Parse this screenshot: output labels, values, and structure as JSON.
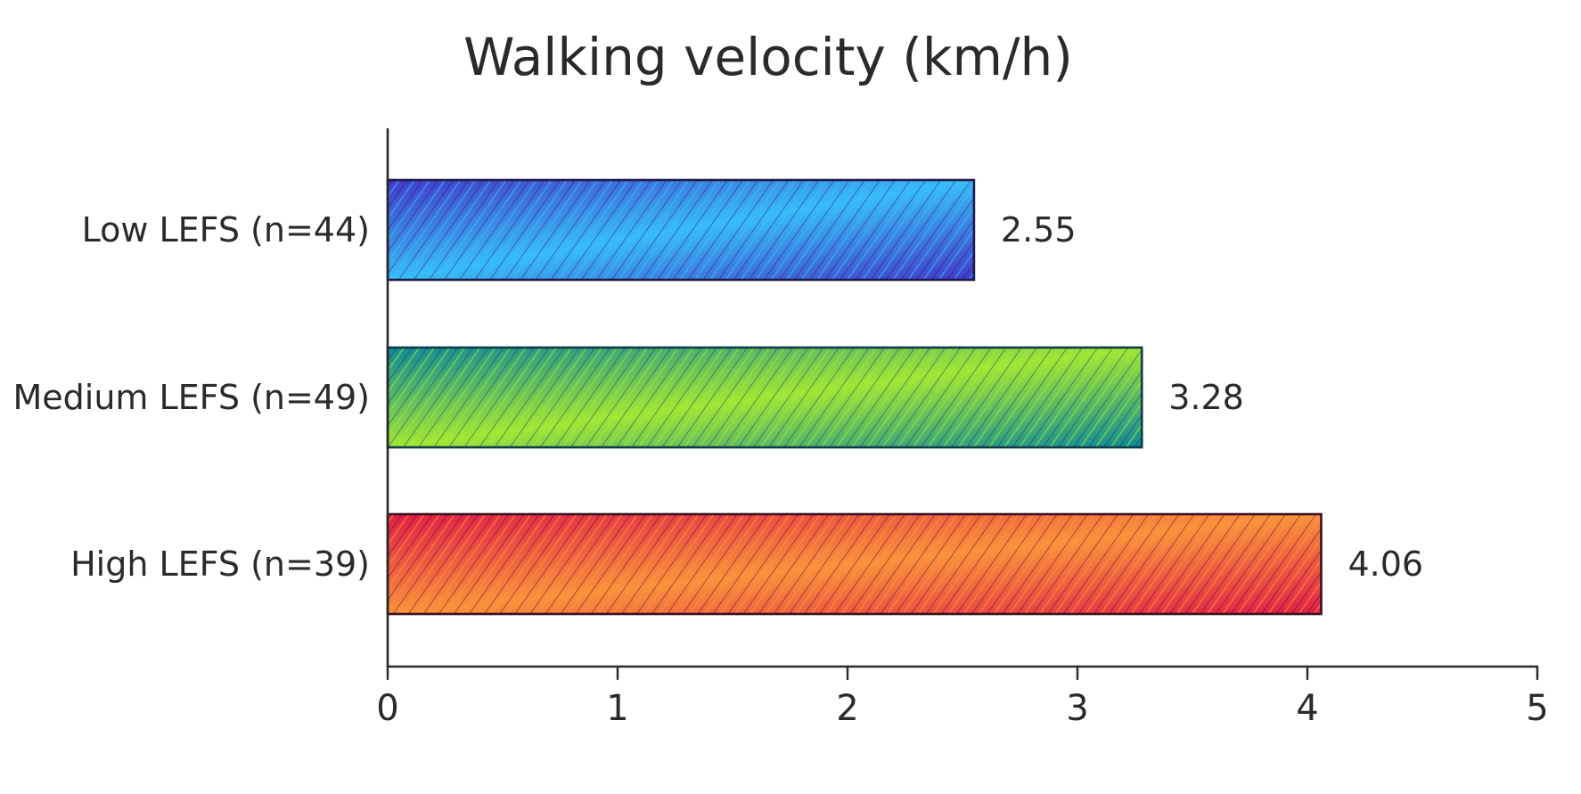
{
  "chart_data": {
    "type": "bar",
    "orientation": "horizontal",
    "title": "Walking velocity (km/h)",
    "xlabel": "",
    "ylabel": "",
    "categories": [
      "Low LEFS (n=44)",
      "Medium LEFS (n=49)",
      "High LEFS (n=39)"
    ],
    "values": [
      2.55,
      3.28,
      4.06
    ],
    "value_labels": [
      "2.55",
      "3.28",
      "4.06"
    ],
    "xlim": [
      0,
      5
    ],
    "x_ticks": [
      0,
      1,
      2,
      3,
      4,
      5
    ],
    "x_tick_labels": [
      "0",
      "1",
      "2",
      "3",
      "4",
      "5"
    ],
    "grid": false,
    "legend": "none",
    "colors": [
      {
        "light": "#38bdf8",
        "dark": "#4338ca",
        "stroke": "#1e1b4b"
      },
      {
        "light": "#a3e635",
        "dark": "#0e8a9a",
        "stroke": "#0f3a4a"
      },
      {
        "light": "#fb923c",
        "dark": "#e11d48",
        "stroke": "#3a1020"
      }
    ]
  }
}
